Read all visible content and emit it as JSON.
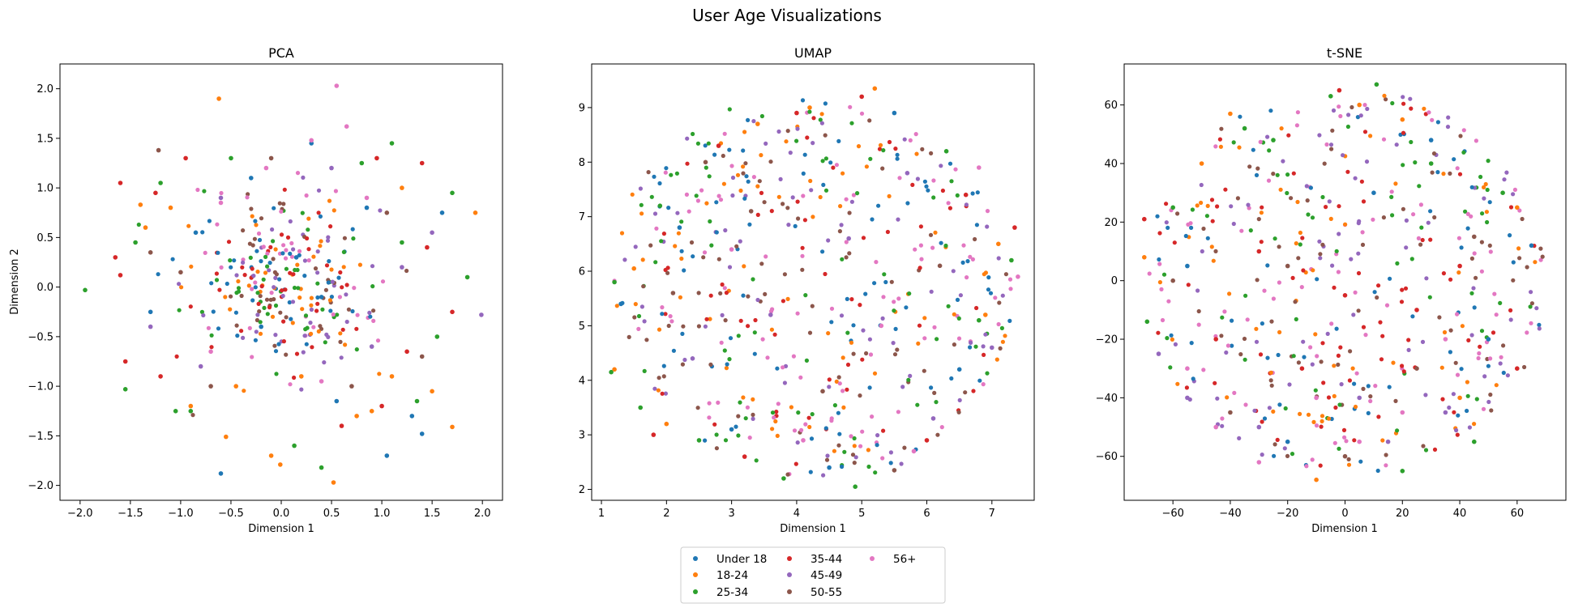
{
  "figure": {
    "suptitle": "User Age Visualizations"
  },
  "legend": {
    "placement": "bottom-center",
    "columns": 3,
    "entries": [
      {
        "label": "Under 18",
        "color": "#1f77b4"
      },
      {
        "label": "18-24",
        "color": "#ff7f0e"
      },
      {
        "label": "25-34",
        "color": "#2ca02c"
      },
      {
        "label": "35-44",
        "color": "#d62728"
      },
      {
        "label": "45-49",
        "color": "#9467bd"
      },
      {
        "label": "50-55",
        "color": "#8c564b"
      },
      {
        "label": "56+",
        "color": "#e377c2"
      }
    ]
  },
  "chart_data": [
    {
      "type": "scatter",
      "title": "PCA",
      "xlabel": "Dimension 1",
      "ylabel": "Dimension 2",
      "xlim": [
        -2.2,
        2.2
      ],
      "ylim": [
        -2.15,
        2.25
      ],
      "xticks": [
        -2.0,
        -1.5,
        -1.0,
        -0.5,
        0.0,
        0.5,
        1.0,
        1.5,
        2.0
      ],
      "xtick_labels": [
        "−2.0",
        "−1.5",
        "−1.0",
        "−0.5",
        "0.0",
        "0.5",
        "1.0",
        "1.5",
        "2.0"
      ],
      "yticks": [
        -2.0,
        -1.5,
        -1.0,
        -0.5,
        0.0,
        0.5,
        1.0,
        1.5,
        2.0
      ],
      "ytick_labels": [
        "−2.0",
        "−1.5",
        "−1.0",
        "−0.5",
        "0.0",
        "0.5",
        "1.0",
        "1.5",
        "2.0"
      ],
      "grid": false,
      "distribution": "gaussian cloud centred at (0, 0), std ≈ 0.45 on each axis; 56+ and 45-49 concentrated near the centre, 18-24 and 25-34 more spread out",
      "series": [
        {
          "name": "Under 18",
          "points": [
            [
              -0.6,
              -1.88
            ],
            [
              0.3,
              1.45
            ],
            [
              1.4,
              -1.48
            ],
            [
              1.05,
              -1.7
            ],
            [
              0.85,
              0.8
            ],
            [
              -0.3,
              1.1
            ],
            [
              0.55,
              -1.15
            ],
            [
              1.3,
              -1.3
            ],
            [
              -0.85,
              0.55
            ],
            [
              0.15,
              0.3
            ],
            [
              -0.2,
              -0.4
            ],
            [
              0.4,
              -0.1
            ],
            [
              1.6,
              0.75
            ],
            [
              -1.3,
              -0.25
            ]
          ]
        },
        {
          "name": "18-24",
          "points": [
            [
              -0.62,
              1.9
            ],
            [
              0.52,
              -1.97
            ],
            [
              -0.01,
              -1.79
            ],
            [
              -0.55,
              -1.51
            ],
            [
              -0.1,
              -1.7
            ],
            [
              1.7,
              -1.41
            ],
            [
              1.93,
              0.75
            ],
            [
              -1.4,
              0.83
            ],
            [
              -1.35,
              0.6
            ],
            [
              1.5,
              -1.05
            ],
            [
              1.2,
              1.0
            ],
            [
              -0.9,
              -1.2
            ],
            [
              0.9,
              -1.25
            ],
            [
              -0.45,
              -1.0
            ],
            [
              0.75,
              -1.3
            ],
            [
              1.1,
              -0.9
            ],
            [
              -1.1,
              0.8
            ],
            [
              0.2,
              -0.9
            ]
          ]
        },
        {
          "name": "25-34",
          "points": [
            [
              -1.95,
              -0.03
            ],
            [
              1.85,
              0.1
            ],
            [
              -1.55,
              -1.03
            ],
            [
              0.4,
              -1.82
            ],
            [
              0.13,
              -1.6
            ],
            [
              1.7,
              0.95
            ],
            [
              -1.2,
              1.05
            ],
            [
              1.1,
              1.45
            ],
            [
              -0.9,
              -1.25
            ],
            [
              1.35,
              -1.15
            ],
            [
              -1.05,
              -1.25
            ],
            [
              1.55,
              -0.5
            ],
            [
              -1.45,
              0.45
            ],
            [
              0.8,
              1.25
            ],
            [
              -0.5,
              1.3
            ],
            [
              1.2,
              0.45
            ]
          ]
        },
        {
          "name": "35-44",
          "points": [
            [
              -1.6,
              1.05
            ],
            [
              -1.65,
              0.3
            ],
            [
              -1.6,
              0.12
            ],
            [
              1.7,
              -0.25
            ],
            [
              1.4,
              1.25
            ],
            [
              -1.55,
              -0.75
            ],
            [
              1.25,
              -0.65
            ],
            [
              -1.25,
              0.95
            ],
            [
              0.95,
              1.3
            ],
            [
              -0.95,
              1.3
            ],
            [
              1.0,
              -1.2
            ],
            [
              -1.2,
              -0.9
            ],
            [
              1.45,
              0.4
            ],
            [
              0.6,
              -1.4
            ]
          ]
        },
        {
          "name": "45-49",
          "points": [
            [
              1.99,
              -0.28
            ],
            [
              1.5,
              0.55
            ],
            [
              -1.3,
              -0.4
            ],
            [
              0.5,
              1.2
            ],
            [
              -0.8,
              -0.8
            ],
            [
              0.9,
              -0.6
            ],
            [
              -0.6,
              0.9
            ],
            [
              1.2,
              0.2
            ]
          ]
        },
        {
          "name": "50-55",
          "points": [
            [
              -1.22,
              1.38
            ],
            [
              -1.3,
              0.35
            ],
            [
              1.4,
              -0.7
            ],
            [
              -0.1,
              1.3
            ],
            [
              0.7,
              -1.0
            ],
            [
              -0.7,
              -1.0
            ],
            [
              1.05,
              0.75
            ],
            [
              -1.0,
              0.15
            ]
          ]
        },
        {
          "name": "56+",
          "points": [
            [
              0.55,
              2.03
            ],
            [
              0.65,
              1.62
            ],
            [
              0.3,
              1.48
            ],
            [
              -0.15,
              1.2
            ],
            [
              0.85,
              0.9
            ],
            [
              -0.6,
              0.85
            ],
            [
              0.4,
              -0.95
            ],
            [
              -0.7,
              -0.65
            ]
          ]
        }
      ]
    },
    {
      "type": "scatter",
      "title": "UMAP",
      "xlabel": "Dimension 1",
      "ylabel": "",
      "xlim": [
        0.85,
        7.65
      ],
      "ylim": [
        1.8,
        9.8
      ],
      "xticks": [
        1,
        2,
        3,
        4,
        5,
        6,
        7
      ],
      "xtick_labels": [
        "1",
        "2",
        "3",
        "4",
        "5",
        "6",
        "7"
      ],
      "yticks": [
        2,
        3,
        4,
        5,
        6,
        7,
        8,
        9
      ],
      "ytick_labels": [
        "2",
        "3",
        "4",
        "5",
        "6",
        "7",
        "8",
        "9"
      ],
      "grid": false,
      "distribution": "filled rounded blob, x ≈ 1.1–7.4, y ≈ 2.0–9.4, all groups evenly mixed",
      "series": [
        {
          "name": "Under 18",
          "points": [
            [
              1.3,
              5.4
            ],
            [
              5.5,
              8.9
            ],
            [
              3.0,
              3.1
            ],
            [
              6.5,
              4.2
            ],
            [
              2.2,
              6.8
            ],
            [
              4.5,
              2.4
            ]
          ]
        },
        {
          "name": "18-24",
          "points": [
            [
              5.2,
              9.35
            ],
            [
              1.5,
              6.05
            ],
            [
              1.2,
              4.2
            ],
            [
              3.4,
              8.7
            ],
            [
              7.1,
              6.5
            ],
            [
              2.0,
              3.2
            ],
            [
              6.9,
              5.2
            ],
            [
              4.2,
              9.0
            ]
          ]
        },
        {
          "name": "25-34",
          "points": [
            [
              1.2,
              5.8
            ],
            [
              1.15,
              4.15
            ],
            [
              4.9,
              2.05
            ],
            [
              6.8,
              5.1
            ],
            [
              1.9,
              7.2
            ],
            [
              2.5,
              2.9
            ],
            [
              6.3,
              8.2
            ],
            [
              3.8,
              2.2
            ],
            [
              7.3,
              6.2
            ],
            [
              1.6,
              3.5
            ]
          ]
        },
        {
          "name": "35-44",
          "points": [
            [
              5.0,
              9.2
            ],
            [
              7.35,
              6.8
            ],
            [
              1.8,
              3.0
            ],
            [
              6.0,
              2.9
            ],
            [
              3.2,
              2.6
            ],
            [
              2.8,
              8.3
            ],
            [
              6.6,
              7.4
            ],
            [
              4.0,
              8.9
            ]
          ]
        },
        {
          "name": "45-49",
          "points": [
            [
              6.1,
              3.3
            ],
            [
              2.4,
              4.4
            ],
            [
              5.7,
              7.8
            ],
            [
              3.6,
              5.2
            ],
            [
              4.8,
              6.6
            ],
            [
              7.0,
              4.6
            ]
          ]
        },
        {
          "name": "50-55",
          "points": [
            [
              5.5,
              2.35
            ],
            [
              2.1,
              5.6
            ],
            [
              6.2,
              6.1
            ],
            [
              3.3,
              7.1
            ],
            [
              4.4,
              3.8
            ],
            [
              2.6,
              8.0
            ]
          ]
        },
        {
          "name": "56+",
          "points": [
            [
              7.4,
              5.9
            ],
            [
              5.8,
              2.7
            ],
            [
              4.1,
              2.9
            ],
            [
              3.0,
              6.4
            ],
            [
              5.3,
              5.0
            ],
            [
              6.8,
              7.9
            ]
          ]
        }
      ]
    },
    {
      "type": "scatter",
      "title": "t-SNE",
      "xlabel": "Dimension 1",
      "ylabel": "",
      "xlim": [
        -77,
        77
      ],
      "ylim": [
        -75,
        74
      ],
      "xticks": [
        -60,
        -40,
        -20,
        0,
        20,
        40,
        60
      ],
      "xtick_labels": [
        "−60",
        "−40",
        "−20",
        "0",
        "20",
        "40",
        "60"
      ],
      "yticks": [
        -60,
        -40,
        -20,
        0,
        20,
        40,
        60
      ],
      "ytick_labels": [
        "−60",
        "−40",
        "−20",
        "0",
        "20",
        "40",
        "60"
      ],
      "grid": false,
      "distribution": "filled disc of radius ≈ 70; 25-34 and 18-24 denser toward the top, 56+ and 45-49 denser toward the bottom, 35-44 across the middle band",
      "series": [
        {
          "name": "Under 18",
          "points": [
            [
              65,
              12
            ],
            [
              -55,
              5
            ],
            [
              30,
              48
            ],
            [
              -20,
              -55
            ],
            [
              50,
              -20
            ],
            [
              10,
              30
            ]
          ]
        },
        {
          "name": "18-24",
          "points": [
            [
              -40,
              57
            ],
            [
              20,
              55
            ],
            [
              -70,
              8
            ],
            [
              60,
              25
            ],
            [
              -10,
              -68
            ],
            [
              40,
              -40
            ],
            [
              -50,
              40
            ],
            [
              5,
              60
            ]
          ]
        },
        {
          "name": "25-34",
          "points": [
            [
              11,
              67
            ],
            [
              -69,
              -14
            ],
            [
              -5,
              63
            ],
            [
              30,
              40
            ],
            [
              -35,
              52
            ],
            [
              55,
              30
            ],
            [
              -60,
              25
            ],
            [
              45,
              -55
            ],
            [
              20,
              -65
            ],
            [
              -25,
              48
            ]
          ]
        },
        {
          "name": "35-44",
          "points": [
            [
              -2,
              65
            ],
            [
              -70,
              21
            ],
            [
              0,
              -5
            ],
            [
              -30,
              10
            ],
            [
              25,
              -10
            ],
            [
              -45,
              -20
            ],
            [
              40,
              5
            ],
            [
              60,
              -30
            ],
            [
              -15,
              -30
            ]
          ]
        },
        {
          "name": "45-49",
          "points": [
            [
              -55,
              -40
            ],
            [
              15,
              -55
            ],
            [
              -30,
              -50
            ],
            [
              35,
              -45
            ],
            [
              -65,
              -25
            ],
            [
              5,
              -40
            ]
          ]
        },
        {
          "name": "50-55",
          "points": [
            [
              0,
              -60
            ],
            [
              -40,
              -45
            ],
            [
              45,
              15
            ],
            [
              -60,
              0
            ],
            [
              25,
              -30
            ],
            [
              -20,
              5
            ]
          ]
        },
        {
          "name": "56+",
          "points": [
            [
              -30,
              -62
            ],
            [
              5,
              -55
            ],
            [
              -45,
              -50
            ],
            [
              20,
              -45
            ],
            [
              -10,
              -40
            ],
            [
              -55,
              -30
            ],
            [
              35,
              -20
            ]
          ]
        }
      ]
    }
  ]
}
